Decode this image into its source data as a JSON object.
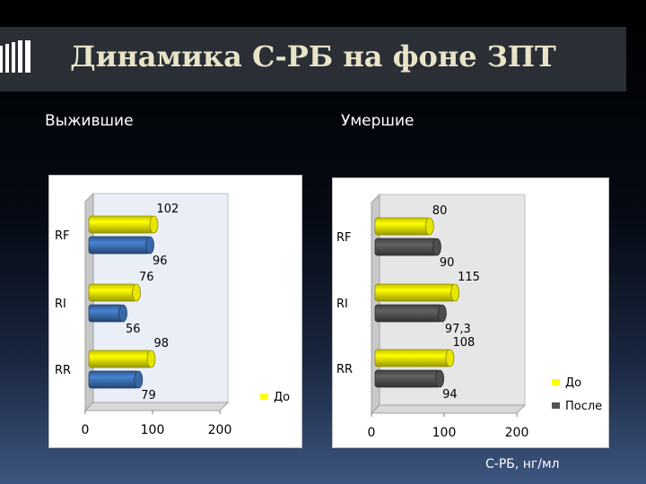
{
  "slide": {
    "title": "Динамика С-РБ на фоне ЗПТ",
    "left_heading": "Выжившие",
    "right_heading": "Умершие",
    "footnote": "С-РБ, нг/мл"
  },
  "colors": {
    "do": "#ffff00",
    "posle_left": "#3e73b8",
    "posle_right": "#555555"
  },
  "chart_data": [
    {
      "type": "bar",
      "orientation": "horizontal",
      "categories": [
        "RF",
        "RI",
        "RR"
      ],
      "series": [
        {
          "name": "До",
          "values": [
            102,
            76,
            98
          ]
        },
        {
          "values": [
            96,
            56,
            79
          ]
        }
      ],
      "value_labels": [
        [
          "102",
          "76",
          "98"
        ],
        [
          "96",
          "56",
          "79"
        ]
      ],
      "xlim": [
        0,
        200
      ],
      "x_ticks": [
        "0",
        "100",
        "200"
      ],
      "legend": [
        "До"
      ],
      "legend_position": "right",
      "grid": false
    },
    {
      "type": "bar",
      "orientation": "horizontal",
      "categories": [
        "RF",
        "RI",
        "RR"
      ],
      "series": [
        {
          "name": "До",
          "values": [
            80,
            115,
            108
          ]
        },
        {
          "name": "После",
          "values": [
            90,
            97.3,
            94
          ]
        }
      ],
      "value_labels": [
        [
          "80",
          "115",
          "108"
        ],
        [
          "90",
          "97,3",
          "94"
        ]
      ],
      "xlim": [
        0,
        200
      ],
      "x_ticks": [
        "0",
        "100",
        "200"
      ],
      "legend": [
        "До",
        "После"
      ],
      "legend_position": "right",
      "grid": false
    }
  ]
}
